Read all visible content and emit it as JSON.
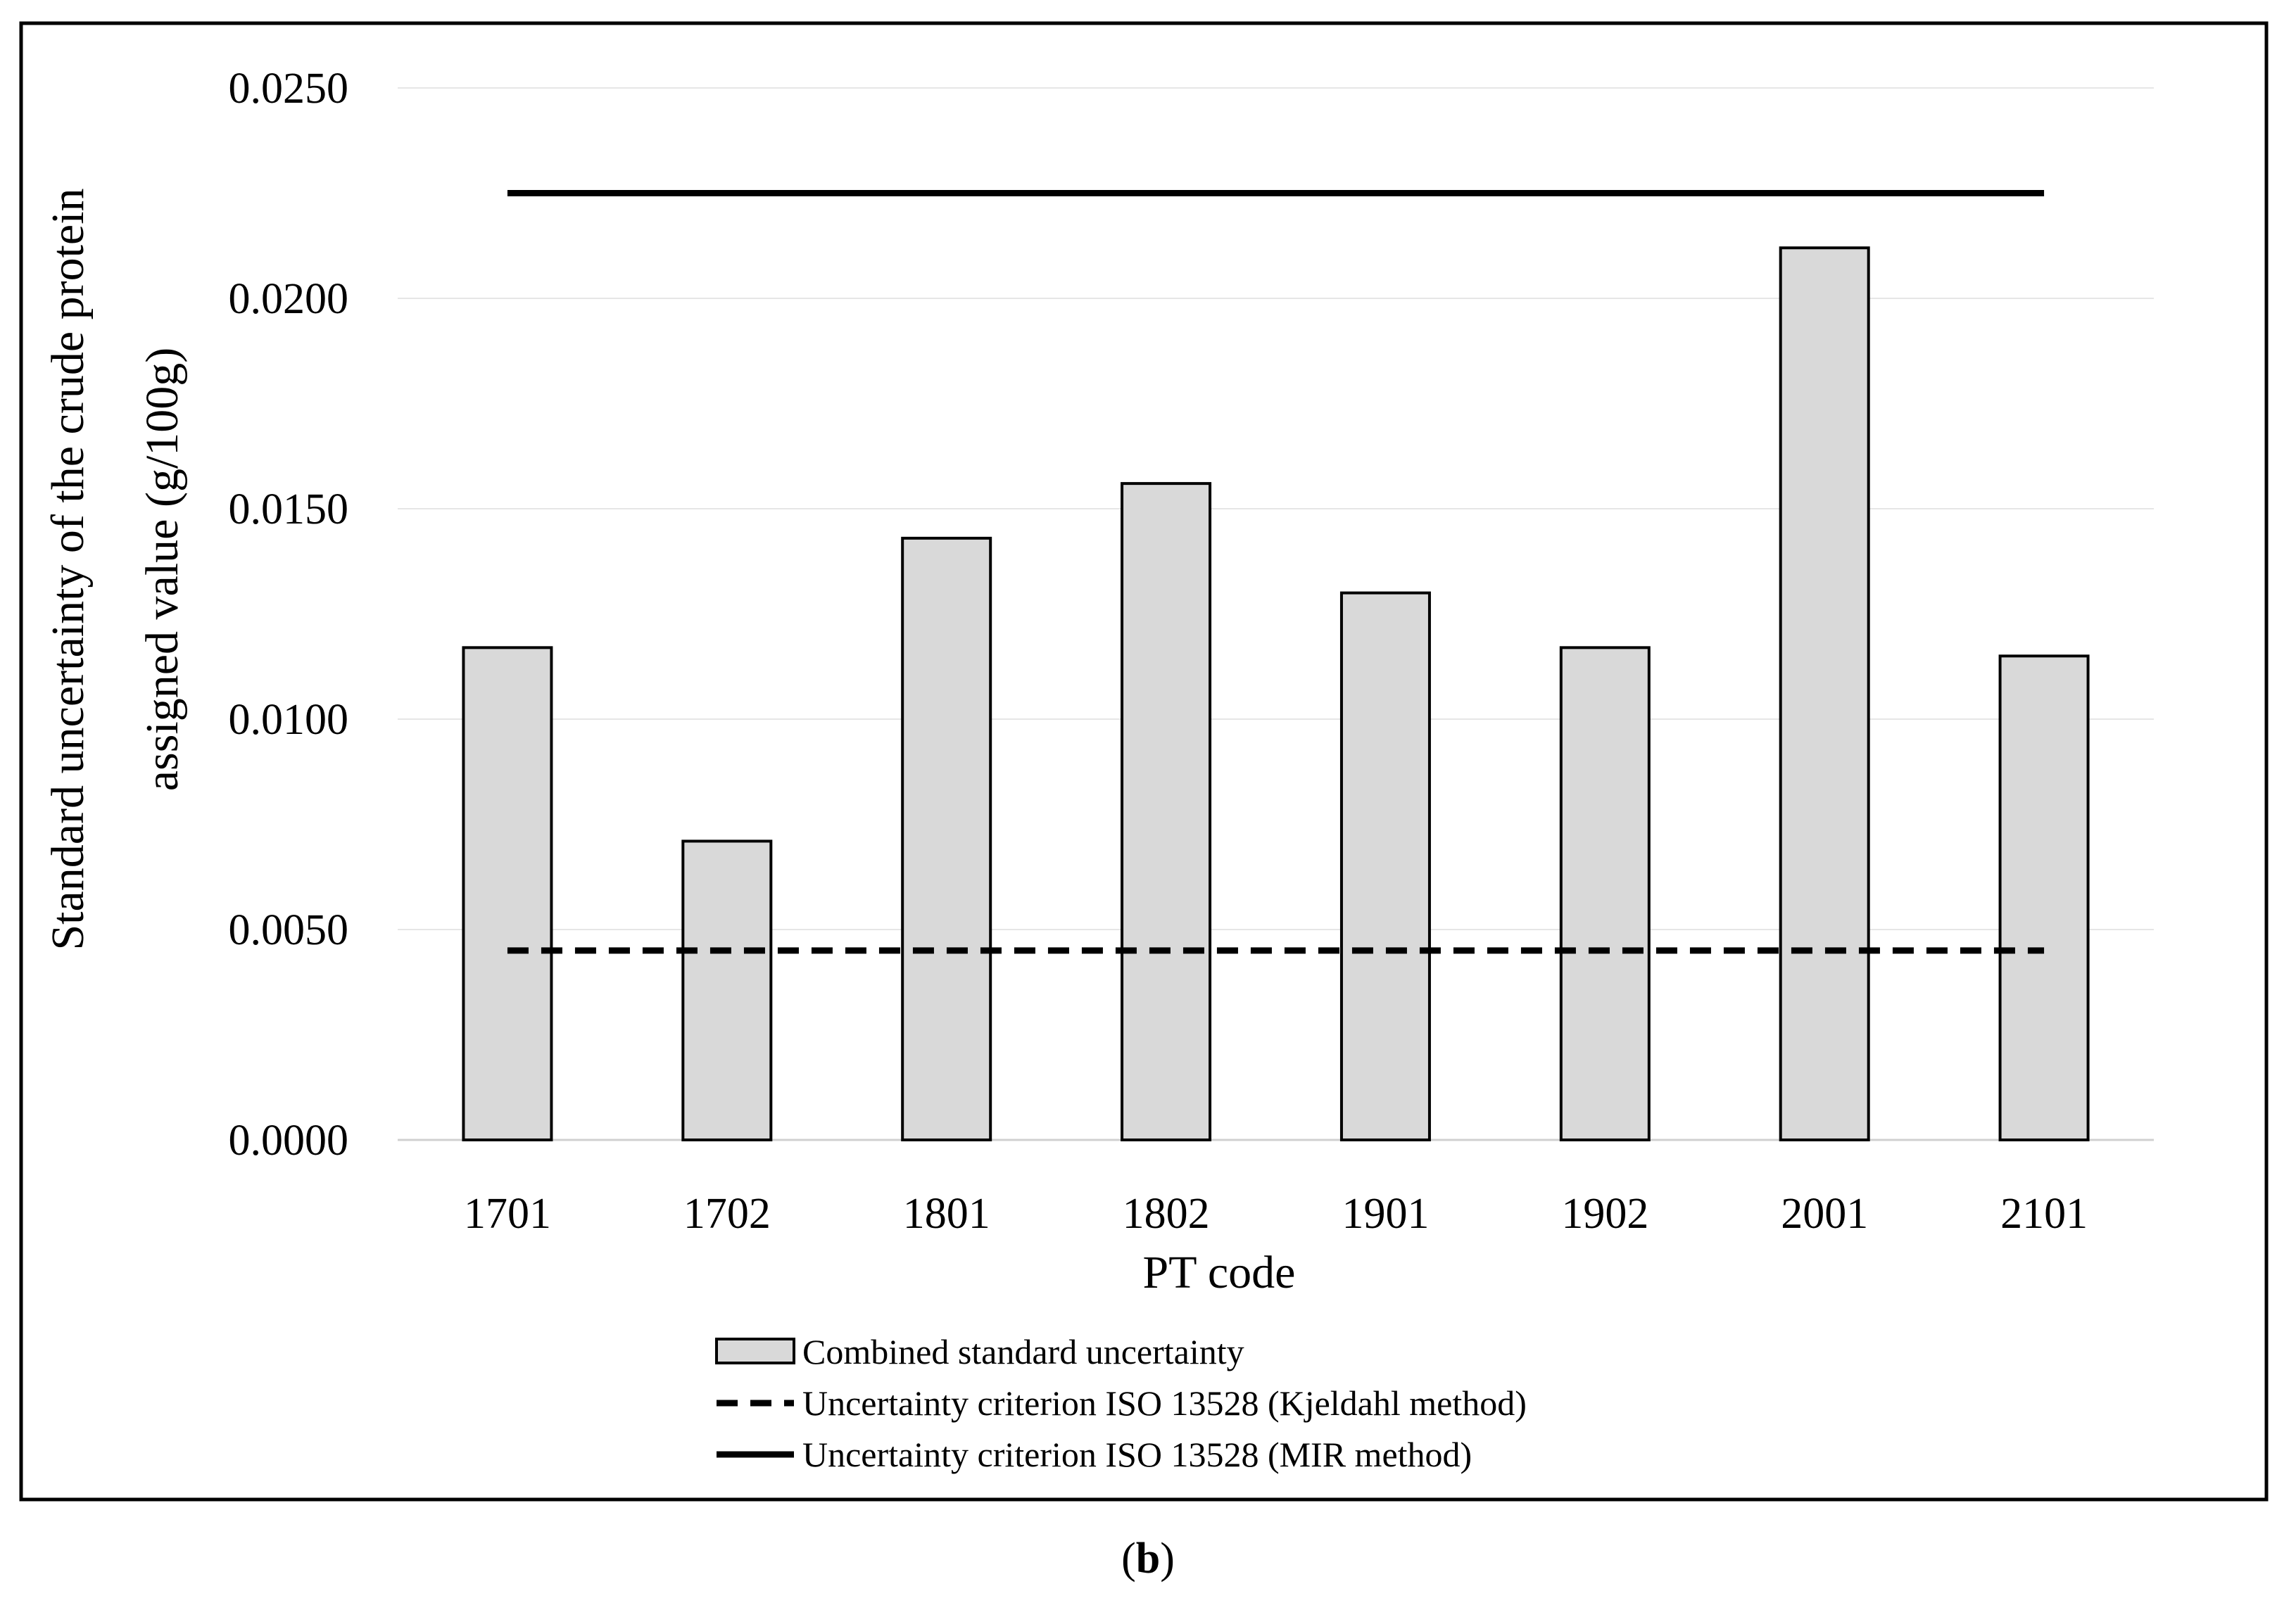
{
  "chart_data": {
    "type": "bar",
    "title": "",
    "xlabel": "PT code",
    "ylabel_line1": "Standard uncertainty of the crude protein",
    "ylabel_line2": "assigned value (g/100g)",
    "categories": [
      "1701",
      "1702",
      "1801",
      "1802",
      "1901",
      "1902",
      "2001",
      "2101"
    ],
    "series": [
      {
        "name": "Combined standard uncertainty",
        "type": "bar",
        "values": [
          0.0117,
          0.0071,
          0.0143,
          0.0156,
          0.013,
          0.0117,
          0.0212,
          0.0115
        ],
        "color": "#d9d9d9"
      },
      {
        "name": "Uncertainty criterion ISO 13528 (Kjeldahl method)",
        "type": "line",
        "style": "dashed",
        "values": [
          0.0045,
          0.0045,
          0.0045,
          0.0045,
          0.0045,
          0.0045,
          0.0045,
          0.0045
        ],
        "color": "#000000"
      },
      {
        "name": "Uncertainty criterion ISO 13528 (MIR method)",
        "type": "line",
        "style": "solid",
        "values": [
          0.0225,
          0.0225,
          0.0225,
          0.0225,
          0.0225,
          0.0225,
          0.0225,
          0.0225
        ],
        "color": "#000000"
      }
    ],
    "yticks": [
      "0.0000",
      "0.0050",
      "0.0100",
      "0.0150",
      "0.0200",
      "0.0250"
    ],
    "ylim": [
      0,
      0.025
    ],
    "grid": true,
    "legend_position": "bottom"
  },
  "caption": {
    "open": "(",
    "letter": "b",
    "close": ")"
  }
}
